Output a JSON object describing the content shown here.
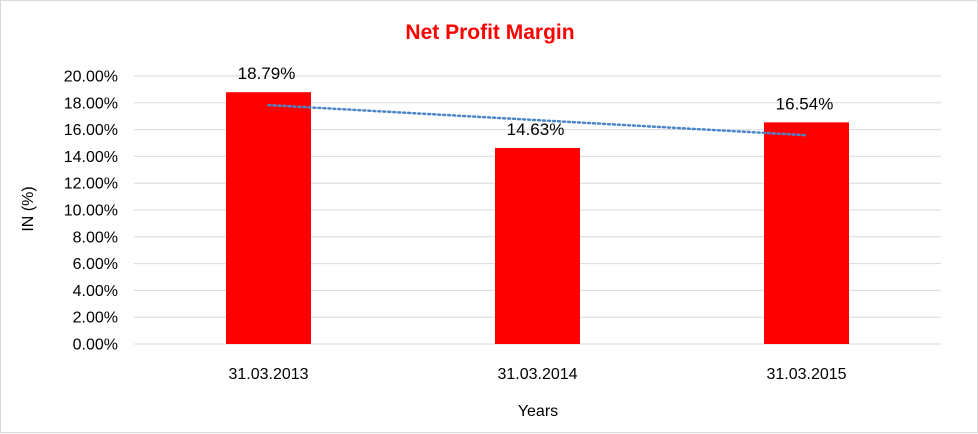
{
  "chart_data": {
    "type": "bar",
    "title": "Net Profit Margin",
    "xlabel": "Years",
    "ylabel": "IN (%)",
    "categories": [
      "31.03.2013",
      "31.03.2014",
      "31.03.2015"
    ],
    "series": [
      {
        "values": [
          18.79,
          14.63,
          16.54
        ],
        "data_labels": [
          "18.79%",
          "14.63%",
          "16.54%"
        ],
        "color": "#ff0000"
      }
    ],
    "trendline": {
      "type": "linear",
      "style": "dotted",
      "color": "#4a86c8",
      "values": [
        17.83,
        16.705,
        15.58
      ]
    },
    "ylim": [
      0,
      20
    ],
    "y_ticks": [
      "0.00%",
      "2.00%",
      "4.00%",
      "6.00%",
      "8.00%",
      "10.00%",
      "12.00%",
      "14.00%",
      "16.00%",
      "18.00%",
      "20.00%"
    ],
    "grid": true,
    "legend": "none",
    "colors": {
      "title": "#ff0000",
      "bars": "#ff0000",
      "gridlines": "#d9d9d9",
      "trendline": "#4a86c8"
    }
  }
}
